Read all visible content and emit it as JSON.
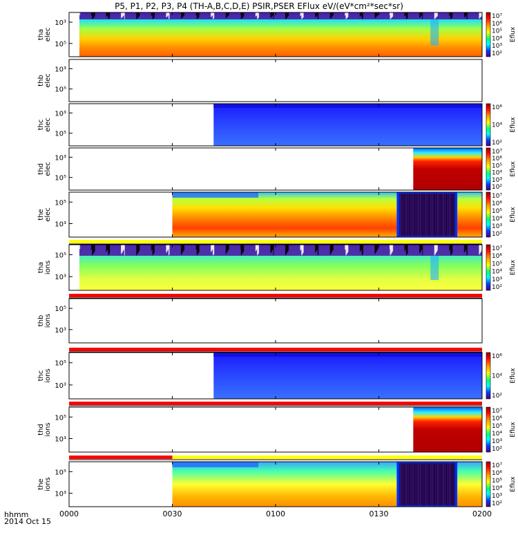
{
  "title": "P5, P1, P2, P3, P4 (TH-A,B,C,D,E) PSIR,PSER EFlux eV/(eV*cm²*sec*sr)",
  "footer": {
    "time_label": "hhmm",
    "date_label": "2014 Oct 15"
  },
  "colors": {
    "flag_yellow": "#ffff00",
    "flag_red": "#ff0000"
  },
  "chart_data": {
    "type": "heatmap",
    "x_ticks": [
      "0000",
      "0030",
      "0100",
      "0130",
      "0200"
    ],
    "x_range_minutes": [
      0,
      120
    ],
    "panels": [
      {
        "id": "tha-elec",
        "ylabel1": "tha",
        "ylabel2": "elec",
        "y_ticks": [
          "10³",
          "10⁵"
        ],
        "data_start_min": 3,
        "data_end_min": 120,
        "profile": "elec-full",
        "colorbar": [
          "10⁷",
          "10⁶",
          "10⁵",
          "10⁴",
          "10³",
          "10²"
        ],
        "colorbar_title": "Eflux"
      },
      {
        "id": "thb-elec",
        "ylabel1": "thb",
        "ylabel2": "elec",
        "y_ticks": [
          "10³",
          "10⁵"
        ],
        "data_start_min": null,
        "data_end_min": null,
        "profile": "empty",
        "colorbar": [],
        "colorbar_title": ""
      },
      {
        "id": "thc-elec",
        "ylabel1": "thc",
        "ylabel2": "elec",
        "y_ticks": [
          "10³",
          "10⁵"
        ],
        "data_start_min": 42,
        "data_end_min": 120,
        "profile": "blue",
        "colorbar": [
          "10⁶",
          "10⁴",
          "10²"
        ],
        "colorbar_title": "Eflux"
      },
      {
        "id": "thd-elec",
        "ylabel1": "thd",
        "ylabel2": "elec",
        "y_ticks": [
          "10³",
          "10⁵"
        ],
        "data_start_min": 100,
        "data_end_min": 120,
        "profile": "red-block",
        "colorbar": [
          "10⁷",
          "10⁶",
          "10⁵",
          "10⁴",
          "10³",
          "10²"
        ],
        "colorbar_title": "Eflux"
      },
      {
        "id": "the-elec",
        "ylabel1": "the",
        "ylabel2": "elec",
        "y_ticks": [
          "10⁵",
          "10³"
        ],
        "data_start_min": 30,
        "data_end_min": 120,
        "profile": "elec-gap",
        "colorbar": [
          "10⁷",
          "10⁶",
          "10⁵",
          "10⁴",
          "10³",
          "10²"
        ],
        "colorbar_title": "Eflux"
      },
      {
        "id": "tha-ions",
        "ylabel1": "tha",
        "ylabel2": "ions",
        "y_ticks": [
          "10⁵",
          "10³"
        ],
        "data_start_min": 3,
        "data_end_min": 120,
        "profile": "ions-full",
        "colorbar": [
          "10⁷",
          "10⁶",
          "10⁵",
          "10⁴",
          "10³",
          "10²"
        ],
        "colorbar_title": "Eflux"
      },
      {
        "id": "thb-ions",
        "ylabel1": "thb",
        "ylabel2": "ions",
        "y_ticks": [
          "10⁵",
          "10³"
        ],
        "data_start_min": null,
        "data_end_min": null,
        "profile": "empty",
        "colorbar": [],
        "colorbar_title": ""
      },
      {
        "id": "thc-ions",
        "ylabel1": "thc",
        "ylabel2": "ions",
        "y_ticks": [
          "10⁵",
          "10³"
        ],
        "data_start_min": 42,
        "data_end_min": 120,
        "profile": "blue",
        "colorbar": [
          "10⁶",
          "10⁴",
          "10²"
        ],
        "colorbar_title": "Eflux"
      },
      {
        "id": "thd-ions",
        "ylabel1": "thd",
        "ylabel2": "ions",
        "y_ticks": [
          "10⁵",
          "10³"
        ],
        "data_start_min": 100,
        "data_end_min": 120,
        "profile": "red-block",
        "colorbar": [
          "10⁷",
          "10⁶",
          "10⁵",
          "10⁴",
          "10³",
          "10²"
        ],
        "colorbar_title": "Eflux"
      },
      {
        "id": "the-ions",
        "ylabel1": "the",
        "ylabel2": "ions",
        "y_ticks": [
          "10⁵",
          "10³"
        ],
        "data_start_min": 30,
        "data_end_min": 120,
        "profile": "ions-gap",
        "colorbar": [
          "10⁷",
          "10⁶",
          "10⁵",
          "10⁴",
          "10³",
          "10²"
        ],
        "colorbar_title": "Eflux"
      }
    ],
    "flag_bars": [
      {
        "after_panel": 4,
        "segments": [
          {
            "start_min": 0,
            "end_min": 120,
            "color": "yellow"
          }
        ]
      },
      {
        "after_panel": 5,
        "segments": [
          {
            "start_min": 0,
            "end_min": 120,
            "color": "red"
          }
        ]
      },
      {
        "after_panel": 6,
        "segments": [
          {
            "start_min": 0,
            "end_min": 120,
            "color": "red"
          }
        ]
      },
      {
        "after_panel": 7,
        "segments": [
          {
            "start_min": 0,
            "end_min": 120,
            "color": "red"
          }
        ]
      },
      {
        "after_panel": 8,
        "segments": [
          {
            "start_min": 0,
            "end_min": 30,
            "color": "red"
          },
          {
            "start_min": 30,
            "end_min": 120,
            "color": "yellow"
          }
        ]
      }
    ]
  }
}
